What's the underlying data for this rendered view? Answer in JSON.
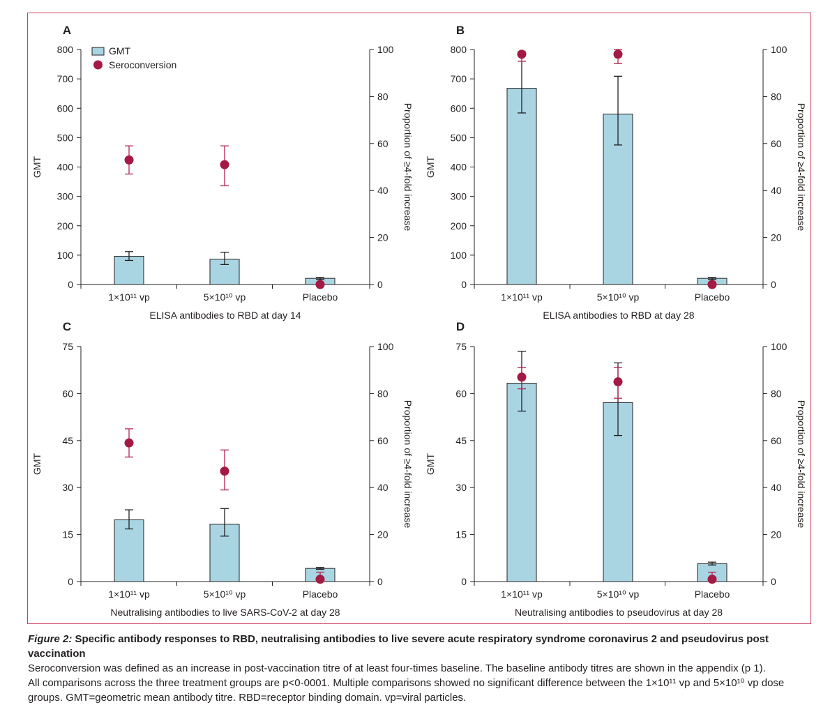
{
  "colors": {
    "bar_fill": "#a9d5e3",
    "bar_stroke": "#231f20",
    "point_fill": "#a31a44",
    "point_error": "#b5234d",
    "frame": "#c8415e",
    "text": "#231f20"
  },
  "chart_data": [
    {
      "type": "bar",
      "panel_label": "A",
      "title": "ELISA antibodies to RBD at day 14",
      "ylabel": "GMT",
      "y2label": "Proportion of ≥4-fold increase",
      "categories": [
        "1×10¹¹ vp",
        "5×10¹⁰ vp",
        "Placebo"
      ],
      "ylim": [
        0,
        800
      ],
      "yticks": [
        0,
        100,
        200,
        300,
        400,
        500,
        600,
        700,
        800
      ],
      "y2lim": [
        0,
        100
      ],
      "y2ticks": [
        0,
        20,
        40,
        60,
        80,
        100
      ],
      "legend": {
        "position": "top-left",
        "entries": [
          "GMT",
          "Seroconversion"
        ]
      },
      "series": [
        {
          "name": "GMT",
          "kind": "bar",
          "values": [
            96,
            86,
            21
          ],
          "err_low": [
            82,
            68,
            17
          ],
          "err_high": [
            112,
            110,
            24
          ]
        },
        {
          "name": "Seroconversion",
          "kind": "point",
          "axis": "right",
          "values": [
            53,
            51,
            0
          ],
          "err_low": [
            47,
            42,
            0
          ],
          "err_high": [
            59,
            59,
            1
          ]
        }
      ]
    },
    {
      "type": "bar",
      "panel_label": "B",
      "title": "ELISA antibodies to RBD at day 28",
      "ylabel": "GMT",
      "y2label": "Proportion of ≥4-fold increase",
      "categories": [
        "1×10¹¹ vp",
        "5×10¹⁰ vp",
        "Placebo"
      ],
      "ylim": [
        0,
        800
      ],
      "yticks": [
        0,
        100,
        200,
        300,
        400,
        500,
        600,
        700,
        800
      ],
      "y2lim": [
        0,
        100
      ],
      "y2ticks": [
        0,
        20,
        40,
        60,
        80,
        100
      ],
      "series": [
        {
          "name": "GMT",
          "kind": "bar",
          "values": [
            668,
            580,
            21
          ],
          "err_low": [
            584,
            475,
            17
          ],
          "err_high": [
            760,
            709,
            24
          ]
        },
        {
          "name": "Seroconversion",
          "kind": "point",
          "axis": "right",
          "values": [
            98,
            98,
            0
          ],
          "err_low": [
            95,
            94,
            0
          ],
          "err_high": [
            99,
            100,
            1
          ]
        }
      ]
    },
    {
      "type": "bar",
      "panel_label": "C",
      "title": "Neutralising antibodies to live SARS-CoV-2 at day 28",
      "ylabel": "GMT",
      "y2label": "Proportion of ≥4-fold increase",
      "categories": [
        "1×10¹¹ vp",
        "5×10¹⁰ vp",
        "Placebo"
      ],
      "ylim": [
        0,
        75
      ],
      "yticks": [
        0,
        15,
        30,
        45,
        60,
        75
      ],
      "y2lim": [
        0,
        100
      ],
      "y2ticks": [
        0,
        20,
        40,
        60,
        80,
        100
      ],
      "series": [
        {
          "name": "GMT",
          "kind": "bar",
          "values": [
            19.7,
            18.3,
            4.2
          ],
          "err_low": [
            16.8,
            14.5,
            3.9
          ],
          "err_high": [
            22.9,
            23.3,
            4.5
          ]
        },
        {
          "name": "Seroconversion",
          "kind": "point",
          "axis": "right",
          "values": [
            59,
            47,
            1
          ],
          "err_low": [
            53,
            39,
            0
          ],
          "err_high": [
            65,
            56,
            4
          ]
        }
      ]
    },
    {
      "type": "bar",
      "panel_label": "D",
      "title": "Neutralising antibodies to pseudovirus at day 28",
      "ylabel": "GMT",
      "y2label": "Proportion of ≥4-fold increase",
      "categories": [
        "1×10¹¹ vp",
        "5×10¹⁰ vp",
        "Placebo"
      ],
      "ylim": [
        0,
        75
      ],
      "yticks": [
        0,
        15,
        30,
        45,
        60,
        75
      ],
      "y2lim": [
        0,
        100
      ],
      "y2ticks": [
        0,
        20,
        40,
        60,
        80,
        100
      ],
      "series": [
        {
          "name": "GMT",
          "kind": "bar",
          "values": [
            63.3,
            57.1,
            5.7
          ],
          "err_low": [
            54.4,
            46.6,
            5.3
          ],
          "err_high": [
            73.5,
            69.8,
            6.2
          ]
        },
        {
          "name": "Seroconversion",
          "kind": "point",
          "axis": "right",
          "values": [
            87,
            85,
            1
          ],
          "err_low": [
            82,
            78,
            0
          ],
          "err_high": [
            91,
            91,
            4
          ]
        }
      ]
    }
  ],
  "caption": {
    "figure_label": "Figure 2:",
    "title": " Specific antibody responses to RBD, neutralising antibodies to live severe acute respiratory syndrome coronavirus 2 and pseudovirus post vaccination",
    "line1": "Seroconversion was defined as an increase in post-vaccination titre of at least four-times baseline. The baseline antibody titres are shown in the appendix (p 1).",
    "line2": "All comparisons across the three treatment groups are p<0·0001. Multiple comparisons showed no significant difference between the 1×10¹¹ vp and 5×10¹⁰ vp dose groups. GMT=geometric mean antibody titre. RBD=receptor binding domain. vp=viral particles."
  }
}
